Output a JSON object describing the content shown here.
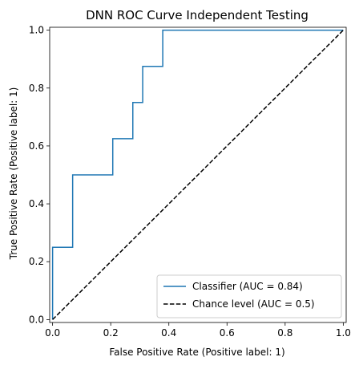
{
  "chart_data": {
    "type": "line",
    "title": "DNN ROC Curve Independent Testing",
    "xlabel": "False Positive Rate (Positive label: 1)",
    "ylabel": "True Positive Rate (Positive label: 1)",
    "xlim": [
      -0.01,
      1.01
    ],
    "ylim": [
      -0.01,
      1.01
    ],
    "xticks": [
      "0.0",
      "0.2",
      "0.4",
      "0.6",
      "0.8",
      "1.0"
    ],
    "yticks": [
      "0.0",
      "0.2",
      "0.4",
      "0.6",
      "0.8",
      "1.0"
    ],
    "grid": false,
    "legend_position": "lower-right",
    "series": [
      {
        "name": "Classifier (AUC = 0.84)",
        "color": "#1f77b4",
        "style": "solid",
        "drawstyle": "steps",
        "x": [
          0.0,
          0.0,
          0.069,
          0.069,
          0.207,
          0.207,
          0.276,
          0.276,
          0.31,
          0.31,
          0.379,
          0.379,
          1.0
        ],
        "y": [
          0.0,
          0.25,
          0.25,
          0.5,
          0.5,
          0.625,
          0.625,
          0.75,
          0.75,
          0.875,
          0.875,
          1.0,
          1.0
        ]
      },
      {
        "name": "Chance level (AUC = 0.5)",
        "color": "#000000",
        "style": "dashed",
        "x": [
          0.0,
          1.0
        ],
        "y": [
          0.0,
          1.0
        ]
      }
    ]
  }
}
